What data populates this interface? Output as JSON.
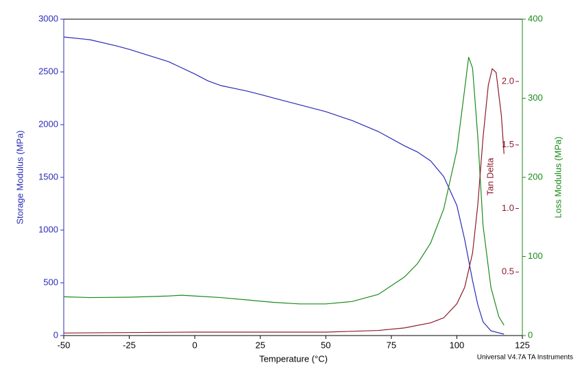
{
  "chart_data": {
    "type": "line",
    "xlabel": "Temperature (°C)",
    "ylabel": "Storage Modulus (MPa)",
    "y2label": "Loss Modulus (MPa)",
    "y3label": "Tan Delta",
    "footer": "Universal V4.7A TA Instruments",
    "xlim": [
      -50,
      125
    ],
    "xticks": [
      -50,
      -25,
      0,
      25,
      50,
      75,
      100,
      125
    ],
    "ylim": [
      0,
      3000
    ],
    "yticks": [
      0,
      500,
      1000,
      1500,
      2000,
      2500,
      3000
    ],
    "y2lim": [
      0,
      400
    ],
    "y2ticks": [
      0,
      100,
      200,
      300,
      400
    ],
    "y3lim": [
      0,
      2.49
    ],
    "y3ticks": [
      0.5,
      {
        "value": 1,
        "label": "1.0"
      },
      1.5,
      {
        "value": 2,
        "label": "2.0"
      }
    ],
    "ycolor": "#2a2ab8",
    "y2color": "#1a8a1a",
    "y3color": "#8b1a2a",
    "series": [
      {
        "name": "Storage Modulus",
        "color": "#2a2ab8",
        "axis": "y",
        "x": [
          -50,
          -40,
          -30,
          -25,
          -20,
          -10,
          0,
          5,
          10,
          20,
          25,
          30,
          40,
          50,
          60,
          70,
          80,
          85,
          90,
          95,
          100,
          103,
          106,
          108,
          110,
          113,
          118
        ],
        "values": [
          2831,
          2805,
          2747,
          2714,
          2675,
          2597,
          2480,
          2415,
          2370,
          2318,
          2286,
          2253,
          2188,
          2123,
          2039,
          1935,
          1799,
          1740,
          1656,
          1507,
          1234,
          909,
          520,
          292,
          130,
          45,
          13
        ]
      },
      {
        "name": "Loss Modulus",
        "color": "#1a8a1a",
        "axis": "y2",
        "x": [
          -50,
          -40,
          -25,
          -10,
          -5,
          0,
          10,
          20,
          30,
          40,
          50,
          60,
          70,
          80,
          85,
          90,
          95,
          100,
          103,
          104.5,
          106,
          108,
          110,
          113,
          116,
          118
        ],
        "values": [
          49,
          48,
          48.5,
          50,
          51,
          50,
          48,
          45,
          42,
          40,
          40,
          43,
          52,
          74,
          91,
          117,
          160,
          234,
          312,
          352,
          338,
          251,
          139,
          61,
          24,
          13
        ]
      },
      {
        "name": "Tan Delta",
        "color": "#8b1a2a",
        "axis": "y3",
        "x": [
          -50,
          0,
          50,
          70,
          80,
          90,
          95,
          100,
          103,
          106,
          108,
          110,
          112,
          113.5,
          115,
          117,
          118
        ],
        "values": [
          0.02,
          0.027,
          0.027,
          0.04,
          0.06,
          0.1,
          0.14,
          0.25,
          0.38,
          0.65,
          1.03,
          1.56,
          1.97,
          2.1,
          2.07,
          1.73,
          1.43
        ]
      }
    ]
  }
}
